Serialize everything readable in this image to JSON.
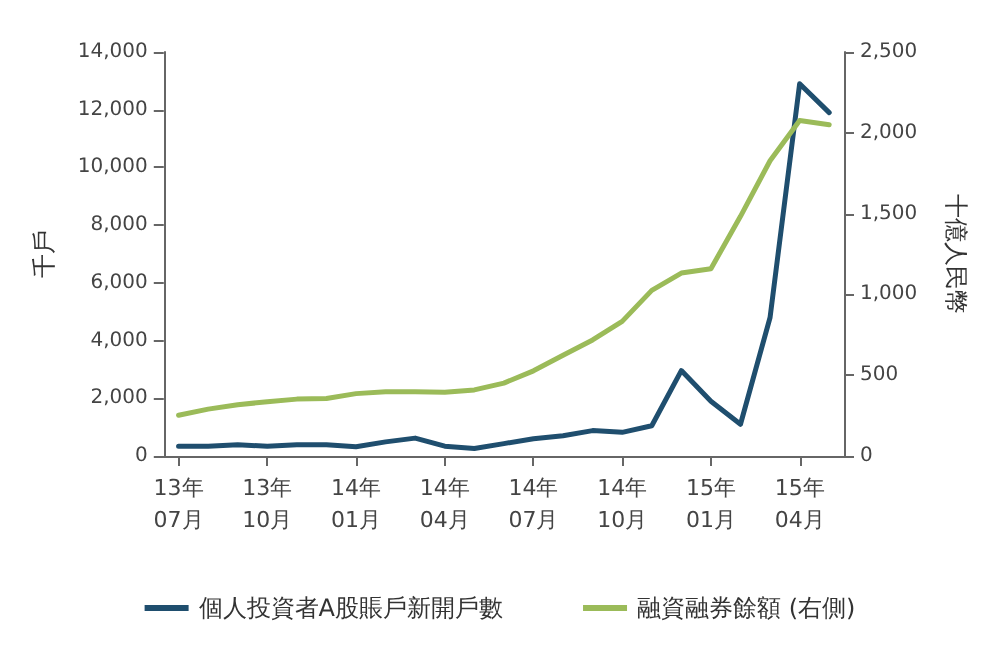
{
  "chart_data": {
    "type": "line",
    "ylabel": "千戶",
    "y2label": "十億人民幣",
    "categories": [
      "13年\n07月",
      null,
      null,
      "13年\n10月",
      null,
      null,
      "14年\n01月",
      null,
      null,
      "14年\n04月",
      null,
      null,
      "14年\n07月",
      null,
      null,
      "14年\n10月",
      null,
      null,
      "15年\n01月",
      null,
      null,
      "15年\n04月",
      null
    ],
    "series": [
      {
        "name": "個人投資者A股賬戶新開戶數",
        "color": "#1f4e6e",
        "values": [
          340,
          340,
          390,
          340,
          390,
          390,
          320,
          490,
          620,
          340,
          260,
          430,
          600,
          700,
          880,
          820,
          1050,
          2960,
          1900,
          1100,
          4800,
          12900,
          11900
        ]
      },
      {
        "name": "融資融券餘額 (右側)",
        "color": "#9bbb59",
        "axis": "y2",
        "values": [
          252,
          290,
          317,
          336,
          352,
          356,
          386,
          398,
          398,
          394,
          409,
          451,
          527,
          623,
          718,
          833,
          1025,
          1132,
          1159,
          1483,
          1827,
          2076,
          2050
        ]
      }
    ],
    "ylim": [
      0,
      14000
    ],
    "yticks": [
      0,
      {
        "value": 2000,
        "label": "2,000"
      },
      {
        "value": 4000,
        "label": "4,000"
      },
      {
        "value": 6000,
        "label": "6,000"
      },
      {
        "value": 8000,
        "label": "8,000"
      },
      {
        "value": 10000,
        "label": "10,000"
      },
      {
        "value": 12000,
        "label": "12,000"
      },
      {
        "value": 14000,
        "label": "14,000"
      }
    ],
    "y2lim": [
      0,
      2500
    ],
    "y2ticks": [
      0,
      500,
      {
        "value": 1000,
        "label": "1,000"
      },
      {
        "value": 1500,
        "label": "1,500"
      },
      {
        "value": 2000,
        "label": "2,000"
      },
      {
        "value": 2500,
        "label": "2,500"
      }
    ],
    "grid": false,
    "legend": "bottom",
    "marker": "none",
    "line_style": "solid"
  }
}
